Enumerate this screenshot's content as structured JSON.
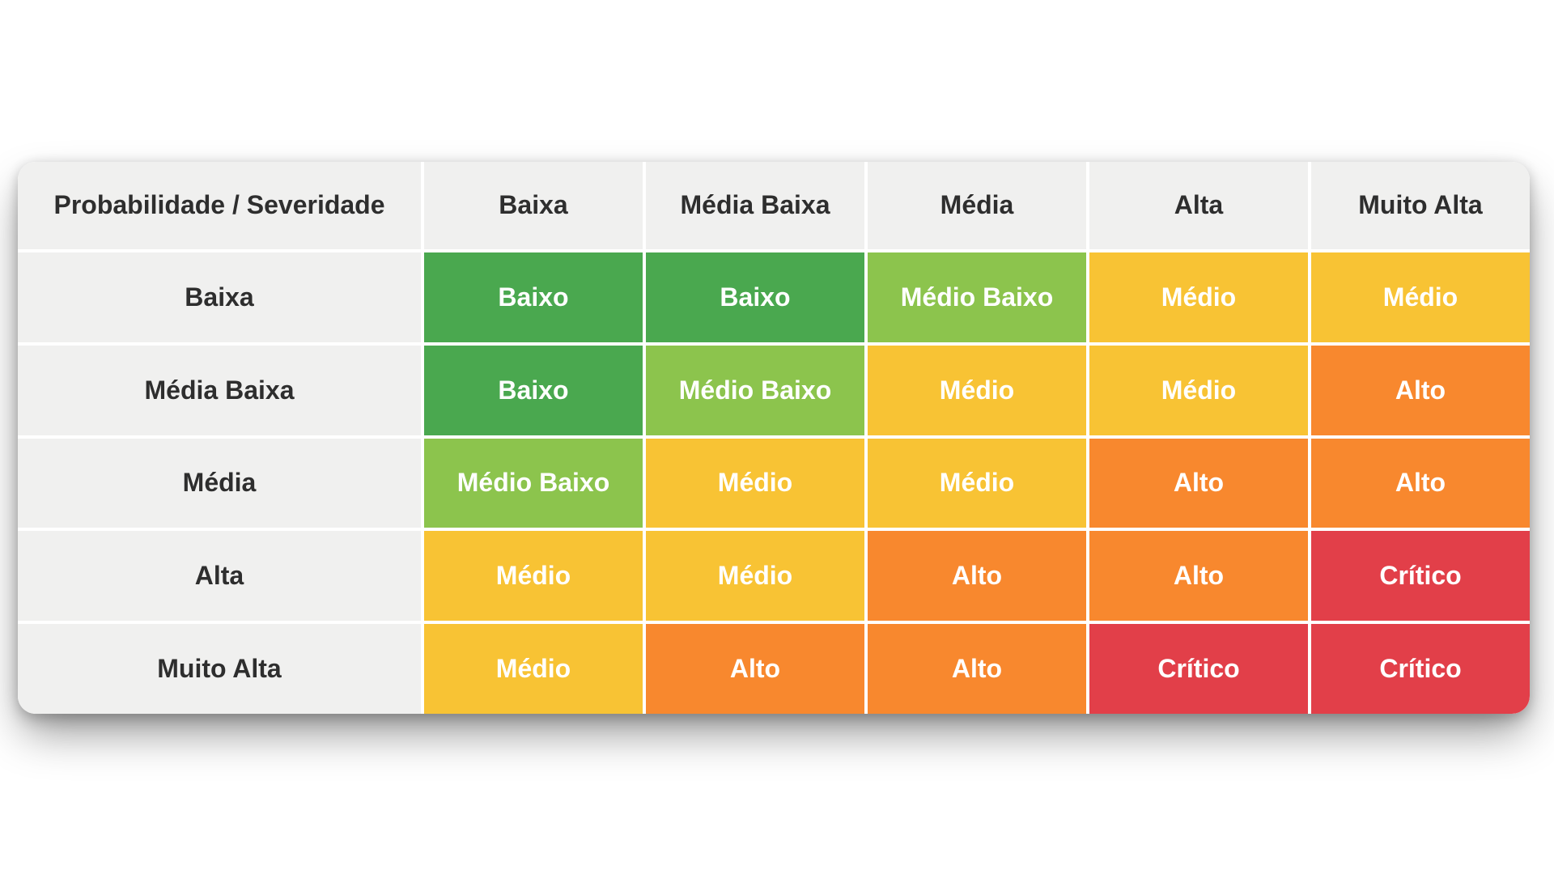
{
  "matrix": {
    "corner_label": "Probabilidade / Severidade",
    "column_headers": [
      "Baixa",
      "Média Baixa",
      "Média",
      "Alta",
      "Muito Alta"
    ],
    "rows": [
      {
        "label": "Baixa",
        "cells": [
          {
            "text": "Baixo",
            "level": "baixo"
          },
          {
            "text": "Baixo",
            "level": "baixo"
          },
          {
            "text": "Médio Baixo",
            "level": "medio_baixo"
          },
          {
            "text": "Médio",
            "level": "medio"
          },
          {
            "text": "Médio",
            "level": "medio"
          }
        ]
      },
      {
        "label": "Média Baixa",
        "cells": [
          {
            "text": "Baixo",
            "level": "baixo"
          },
          {
            "text": "Médio Baixo",
            "level": "medio_baixo"
          },
          {
            "text": "Médio",
            "level": "medio"
          },
          {
            "text": "Médio",
            "level": "medio"
          },
          {
            "text": "Alto",
            "level": "alto"
          }
        ]
      },
      {
        "label": "Média",
        "cells": [
          {
            "text": "Médio Baixo",
            "level": "medio_baixo"
          },
          {
            "text": "Médio",
            "level": "medio"
          },
          {
            "text": "Médio",
            "level": "medio"
          },
          {
            "text": "Alto",
            "level": "alto"
          },
          {
            "text": "Alto",
            "level": "alto"
          }
        ]
      },
      {
        "label": "Alta",
        "cells": [
          {
            "text": "Médio",
            "level": "medio"
          },
          {
            "text": "Médio",
            "level": "medio"
          },
          {
            "text": "Alto",
            "level": "alto"
          },
          {
            "text": "Alto",
            "level": "alto"
          },
          {
            "text": "Crítico",
            "level": "critico"
          }
        ]
      },
      {
        "label": "Muito Alta",
        "cells": [
          {
            "text": "Médio",
            "level": "medio"
          },
          {
            "text": "Alto",
            "level": "alto"
          },
          {
            "text": "Alto",
            "level": "alto"
          },
          {
            "text": "Crítico",
            "level": "critico"
          },
          {
            "text": "Crítico",
            "level": "critico"
          }
        ]
      }
    ]
  },
  "colors": {
    "baixo": "#4AA84F",
    "medio_baixo": "#8CC44D",
    "medio": "#F8C334",
    "alto": "#F8882E",
    "critico": "#E23F49",
    "header_bg": "#F0F0EF",
    "header_text": "#2E2E2E",
    "cell_text": "#FFFFFF"
  },
  "chart_data": {
    "type": "heatmap",
    "title": "Probabilidade / Severidade",
    "x_axis_label": "Severidade",
    "y_axis_label": "Probabilidade",
    "x_categories": [
      "Baixa",
      "Média Baixa",
      "Média",
      "Alta",
      "Muito Alta"
    ],
    "y_categories": [
      "Baixa",
      "Média Baixa",
      "Média",
      "Alta",
      "Muito Alta"
    ],
    "cells": [
      [
        "Baixo",
        "Baixo",
        "Médio Baixo",
        "Médio",
        "Médio"
      ],
      [
        "Baixo",
        "Médio Baixo",
        "Médio",
        "Médio",
        "Alto"
      ],
      [
        "Médio Baixo",
        "Médio",
        "Médio",
        "Alto",
        "Alto"
      ],
      [
        "Médio",
        "Médio",
        "Alto",
        "Alto",
        "Crítico"
      ],
      [
        "Médio",
        "Alto",
        "Alto",
        "Crítico",
        "Crítico"
      ]
    ],
    "level_scale": [
      "Baixo",
      "Médio Baixo",
      "Médio",
      "Alto",
      "Crítico"
    ],
    "level_colors": {
      "Baixo": "#4AA84F",
      "Médio Baixo": "#8CC44D",
      "Médio": "#F8C334",
      "Alto": "#F8882E",
      "Crítico": "#E23F49"
    },
    "legend_position": "none",
    "grid": false
  }
}
